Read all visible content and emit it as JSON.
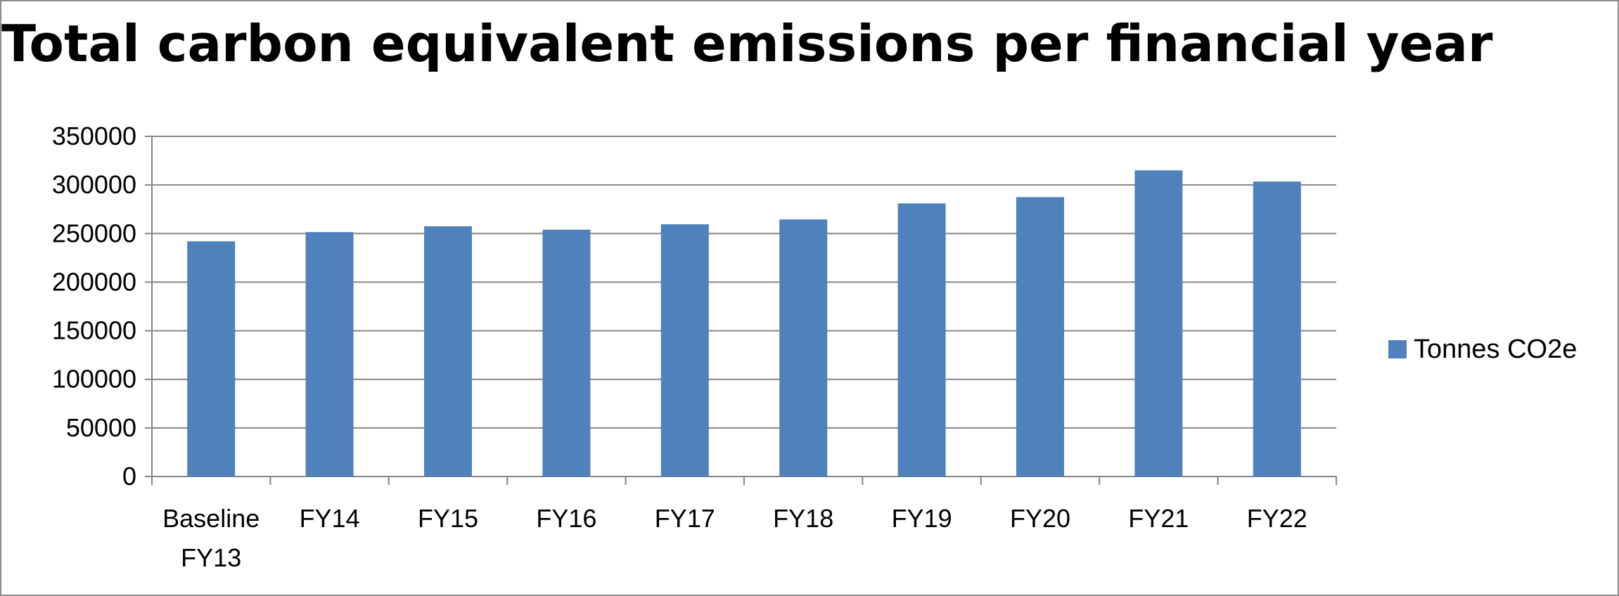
{
  "chart_data": {
    "type": "bar",
    "title": "Total carbon equivalent emissions per financial year",
    "categories": [
      [
        "Baseline",
        "FY13"
      ],
      [
        "FY14"
      ],
      [
        "FY15"
      ],
      [
        "FY16"
      ],
      [
        "FY17"
      ],
      [
        "FY18"
      ],
      [
        "FY19"
      ],
      [
        "FY20"
      ],
      [
        "FY21"
      ],
      [
        "FY22"
      ]
    ],
    "series": [
      {
        "name": "Tonnes CO2e",
        "color": "#4F81BD",
        "values": [
          242000,
          251500,
          257500,
          254000,
          259500,
          264500,
          281000,
          287500,
          315000,
          303500
        ]
      }
    ],
    "yticks": [
      "0",
      "50000",
      "100000",
      "150000",
      "200000",
      "250000",
      "300000",
      "350000"
    ],
    "ylim": [
      0,
      350000
    ],
    "grid": true,
    "legend_position": "right"
  }
}
